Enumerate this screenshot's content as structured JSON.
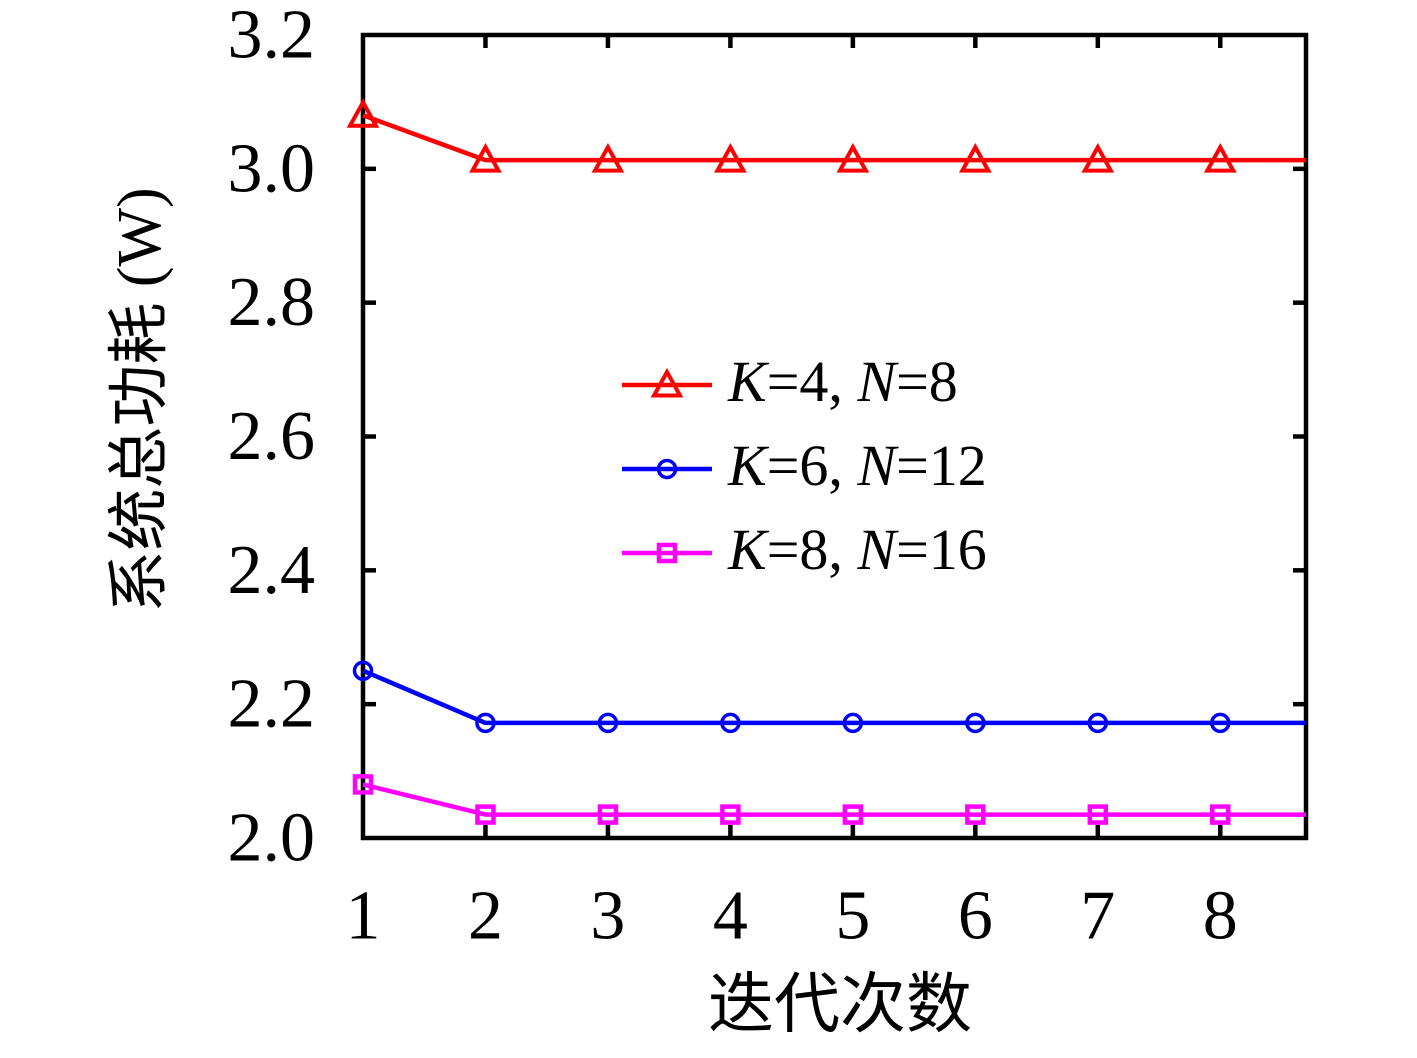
{
  "chart_data": {
    "type": "line",
    "title": "",
    "xlabel": "迭代次数",
    "ylabel": "系统总功耗 (W)",
    "xlim": [
      1,
      8.7
    ],
    "ylim": [
      2.0,
      3.2
    ],
    "x": [
      1,
      2,
      3,
      4,
      5,
      6,
      7,
      8
    ],
    "xtick_labels": [
      "1",
      "2",
      "3",
      "4",
      "5",
      "6",
      "7",
      "8"
    ],
    "ytick_values": [
      2.0,
      2.2,
      2.4,
      2.6,
      2.8,
      3.0,
      3.2
    ],
    "ytick_labels": [
      "2.0",
      "2.2",
      "2.4",
      "2.6",
      "2.8",
      "3.0",
      "3.2"
    ],
    "grid": false,
    "legend_position": "inside-upper-middle",
    "axis_color": "#000000",
    "background_color": "#ffffff",
    "extend_lines_to_xmax": true,
    "series": [
      {
        "name": "K=4, N=8",
        "name_parts": [
          {
            "text": "K",
            "italic": true
          },
          {
            "text": "=4, ",
            "italic": false
          },
          {
            "text": "N",
            "italic": true
          },
          {
            "text": "=8",
            "italic": false
          }
        ],
        "color": "#FF0000",
        "marker": "triangle-up",
        "values": [
          3.08,
          3.013,
          3.013,
          3.013,
          3.013,
          3.013,
          3.013,
          3.013
        ]
      },
      {
        "name": "K=6, N=12",
        "name_parts": [
          {
            "text": "K",
            "italic": true
          },
          {
            "text": "=6, ",
            "italic": false
          },
          {
            "text": "N",
            "italic": true
          },
          {
            "text": "=12",
            "italic": false
          }
        ],
        "color": "#0000FF",
        "marker": "circle",
        "values": [
          2.25,
          2.172,
          2.172,
          2.172,
          2.172,
          2.172,
          2.172,
          2.172
        ]
      },
      {
        "name": "K=8, N=16",
        "name_parts": [
          {
            "text": "K",
            "italic": true
          },
          {
            "text": "=8, ",
            "italic": false
          },
          {
            "text": "N",
            "italic": true
          },
          {
            "text": "=16",
            "italic": false
          }
        ],
        "color": "#FF00FF",
        "marker": "square",
        "values": [
          2.08,
          2.035,
          2.035,
          2.035,
          2.035,
          2.035,
          2.035,
          2.035
        ]
      }
    ]
  }
}
